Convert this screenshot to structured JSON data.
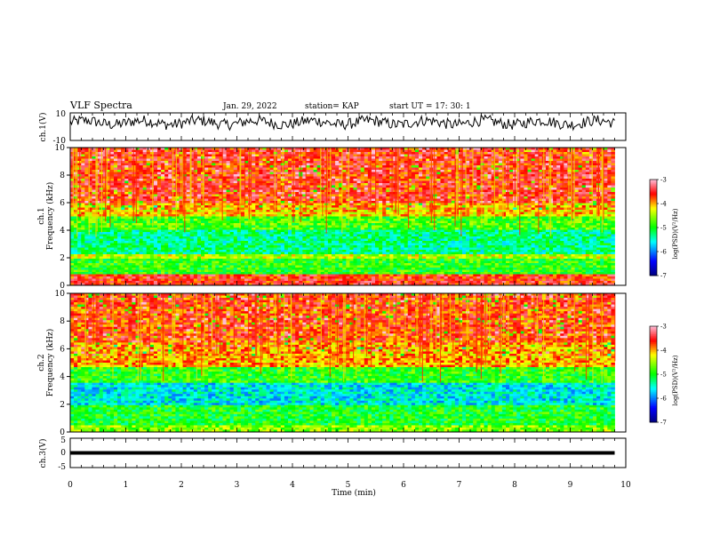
{
  "header": {
    "title": "VLF Spectra",
    "date": "Jan. 29, 2022",
    "station": "station= KAP",
    "start_ut": "start  UT  =   17: 30: 1"
  },
  "chart_data": [
    {
      "type": "line",
      "panel": "ch1-waveform",
      "ylabel": "ch.1(V)",
      "ylim": [
        -10,
        10
      ],
      "yticks": [
        "10",
        "-10"
      ],
      "xlim": [
        0,
        10
      ],
      "data_end_min": 9.8,
      "approx_level": 3,
      "approx_amplitude": 4
    },
    {
      "type": "heatmap",
      "panel": "ch1-spectrogram",
      "ylabel": "ch.1\nFrequency  (kHz)",
      "ylim": [
        0,
        10
      ],
      "yticks": [
        "0",
        "2",
        "4",
        "6",
        "8",
        "10"
      ],
      "xlim": [
        0,
        10
      ],
      "data_end_min": 9.8,
      "colorbar": {
        "label": "log(PSD)(V²/Hz)",
        "range": [
          -7,
          -3
        ],
        "ticks": [
          "-3",
          "-4",
          "-5",
          "-6",
          "-7"
        ]
      },
      "bands_khz": [
        {
          "from": 0,
          "to": 0.8,
          "level": -3.6
        },
        {
          "from": 0.8,
          "to": 2.0,
          "level": -4.9
        },
        {
          "from": 2.0,
          "to": 2.3,
          "level": -4.4
        },
        {
          "from": 2.3,
          "to": 4.0,
          "level": -5.3
        },
        {
          "from": 4.0,
          "to": 5.0,
          "level": -4.8
        },
        {
          "from": 5.0,
          "to": 6.0,
          "level": -4.1
        },
        {
          "from": 6.0,
          "to": 10.0,
          "level": -3.6
        }
      ]
    },
    {
      "type": "heatmap",
      "panel": "ch2-spectrogram",
      "ylabel": "ch.2\nFrequency  (kHz)",
      "ylim": [
        0,
        10
      ],
      "yticks": [
        "0",
        "2",
        "4",
        "6",
        "8",
        "10"
      ],
      "xlim": [
        0,
        10
      ],
      "data_end_min": 9.8,
      "colorbar": {
        "label": "log(PSD)(V²/Hz)",
        "range": [
          -7,
          -3
        ],
        "ticks": [
          "-3",
          "-4",
          "-5",
          "-6",
          "-7"
        ]
      },
      "bands_khz": [
        {
          "from": 0,
          "to": 0.5,
          "level": -4.6
        },
        {
          "from": 0.5,
          "to": 2.0,
          "level": -5.0
        },
        {
          "from": 2.0,
          "to": 3.6,
          "level": -5.6
        },
        {
          "from": 3.6,
          "to": 4.6,
          "level": -4.9
        },
        {
          "from": 4.6,
          "to": 6.5,
          "level": -4.0
        },
        {
          "from": 6.5,
          "to": 10.0,
          "level": -3.7
        }
      ]
    },
    {
      "type": "line",
      "panel": "ch3-waveform",
      "ylabel": "ch.3(V)",
      "ylim": [
        -5,
        5
      ],
      "yticks": [
        "5",
        "0",
        "-5"
      ],
      "xlim": [
        0,
        10
      ],
      "data_end_min": 9.8,
      "approx_level": 0,
      "approx_amplitude": 0.6
    }
  ],
  "x_axis": {
    "label": "Time  (min)",
    "ticks": [
      "0",
      "1",
      "2",
      "3",
      "4",
      "5",
      "6",
      "7",
      "8",
      "9",
      "10"
    ]
  }
}
